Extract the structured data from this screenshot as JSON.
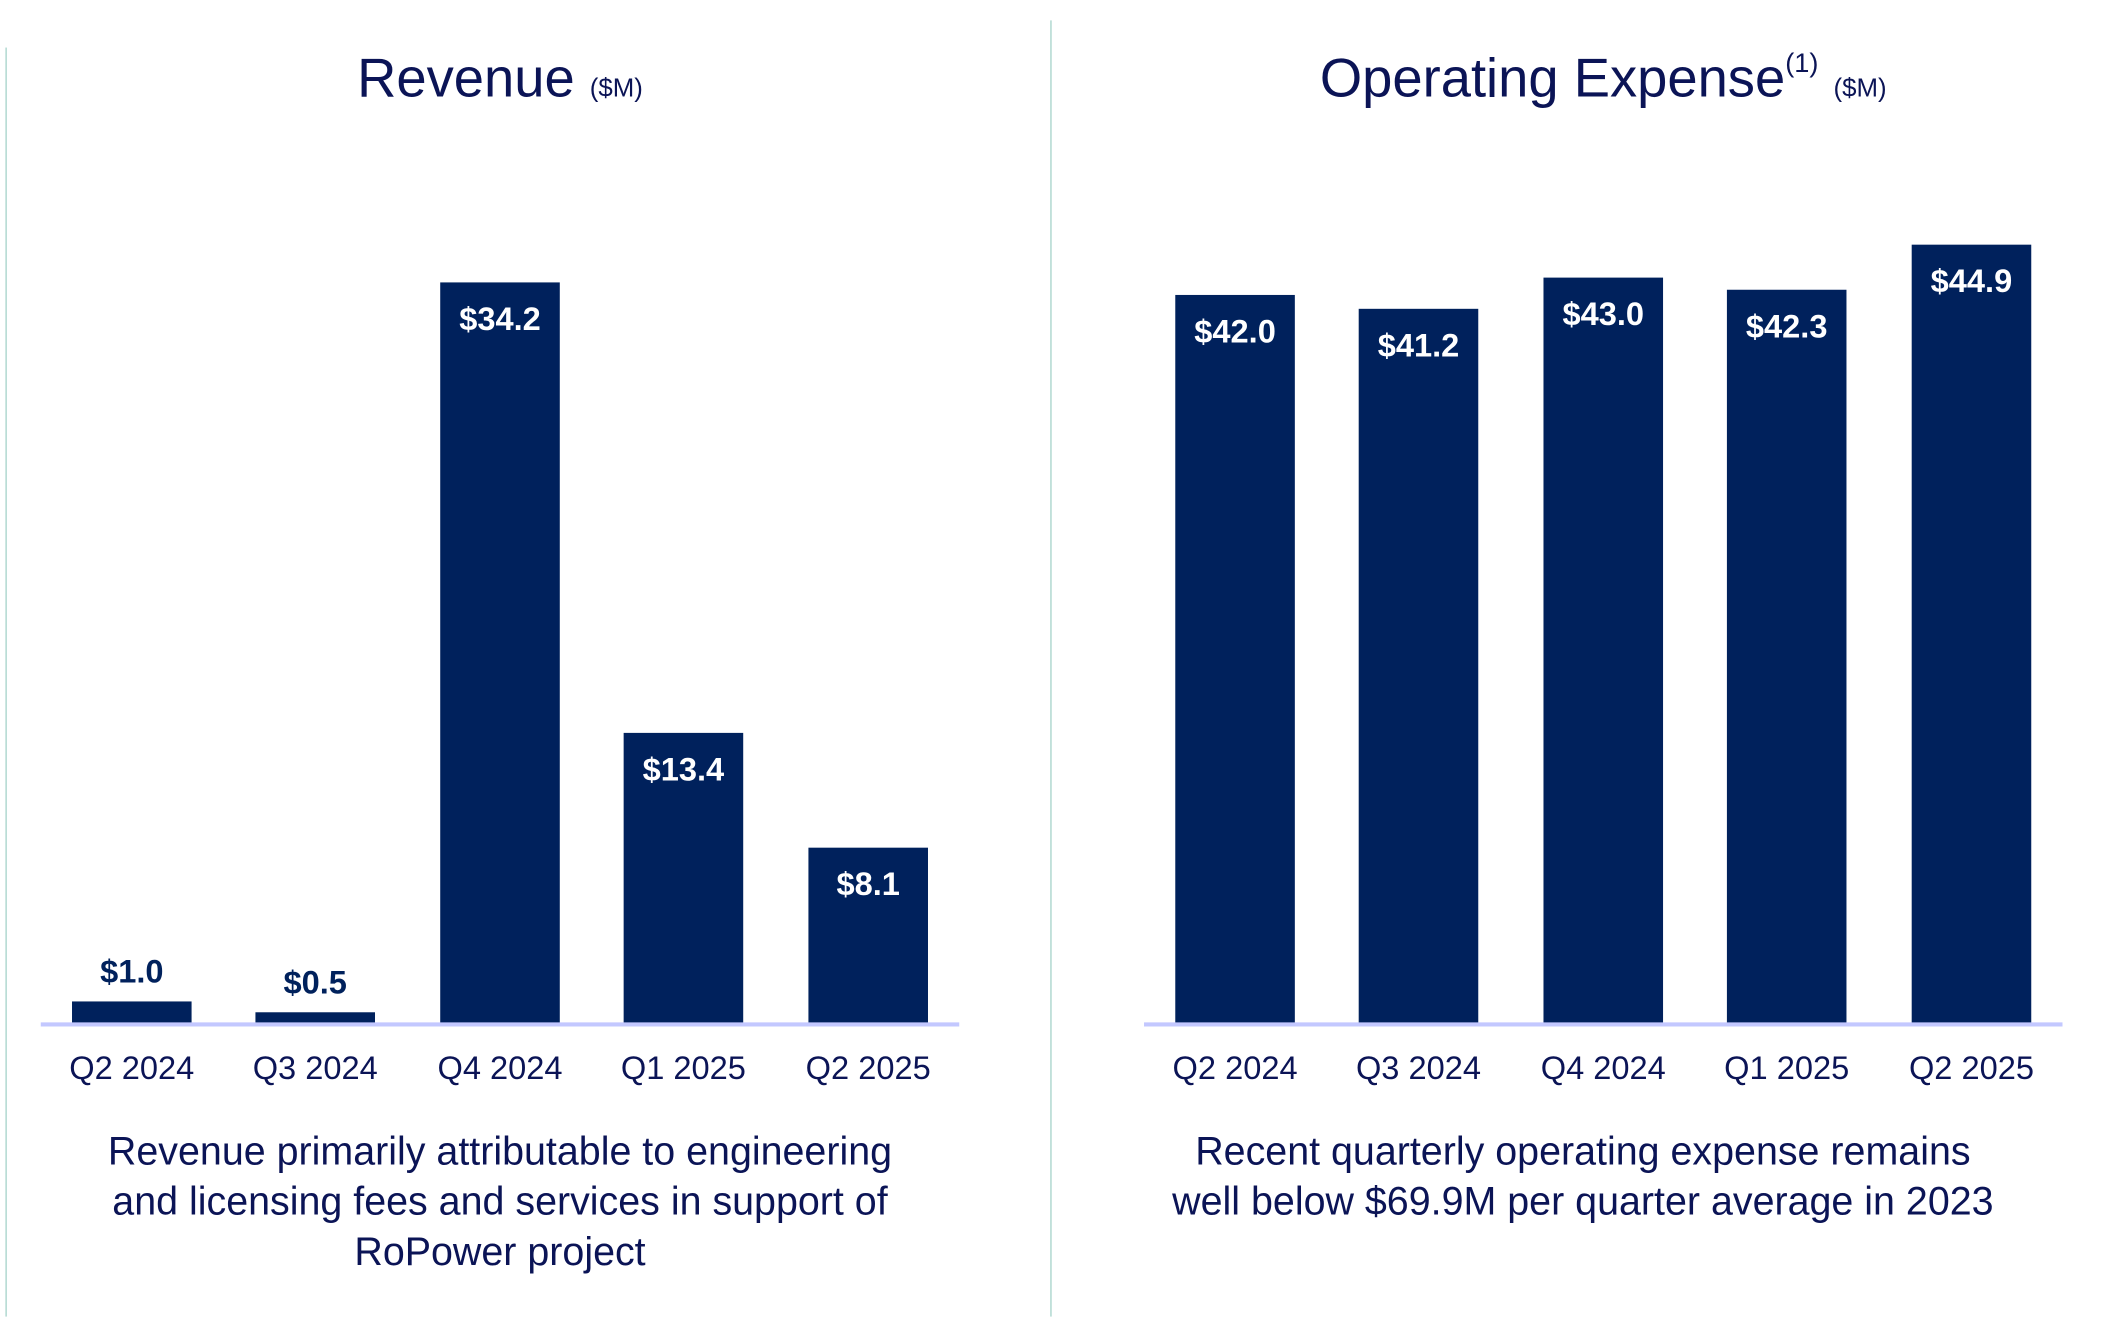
{
  "chart_data": [
    {
      "type": "bar",
      "title": "Revenue",
      "unit": "($M)",
      "categories": [
        "Q2 2024",
        "Q3 2024",
        "Q4 2024",
        "Q1 2025",
        "Q2 2025"
      ],
      "values": [
        1.0,
        0.5,
        34.2,
        13.4,
        8.1
      ],
      "labels": [
        "$1.0",
        "$0.5",
        "$34.2",
        "$13.4",
        "$8.1"
      ],
      "ylim": [
        0,
        40
      ],
      "xlabel": "",
      "ylabel": "",
      "grid": false,
      "caption": [
        "Revenue primarily attributable to engineering",
        "and licensing fees and services in support of",
        "RoPower project"
      ]
    },
    {
      "type": "bar",
      "title": "Operating Expense",
      "superscript": "(1)",
      "unit": "($M)",
      "categories": [
        "Q2 2024",
        "Q3 2024",
        "Q4 2024",
        "Q1 2025",
        "Q2 2025"
      ],
      "values": [
        42.0,
        41.2,
        43.0,
        42.3,
        44.9
      ],
      "labels": [
        "$42.0",
        "$41.2",
        "$43.0",
        "$42.3",
        "$44.9"
      ],
      "ylim": [
        0,
        50
      ],
      "xlabel": "",
      "ylabel": "",
      "grid": false,
      "caption": [
        "Recent quarterly operating expense remains",
        "well below $69.9M per quarter average in 2023"
      ]
    }
  ],
  "colors": {
    "bar": "#00215C",
    "text": "#0B1456",
    "axis": "#C3C8FF",
    "divider": "#A8D4CC"
  }
}
